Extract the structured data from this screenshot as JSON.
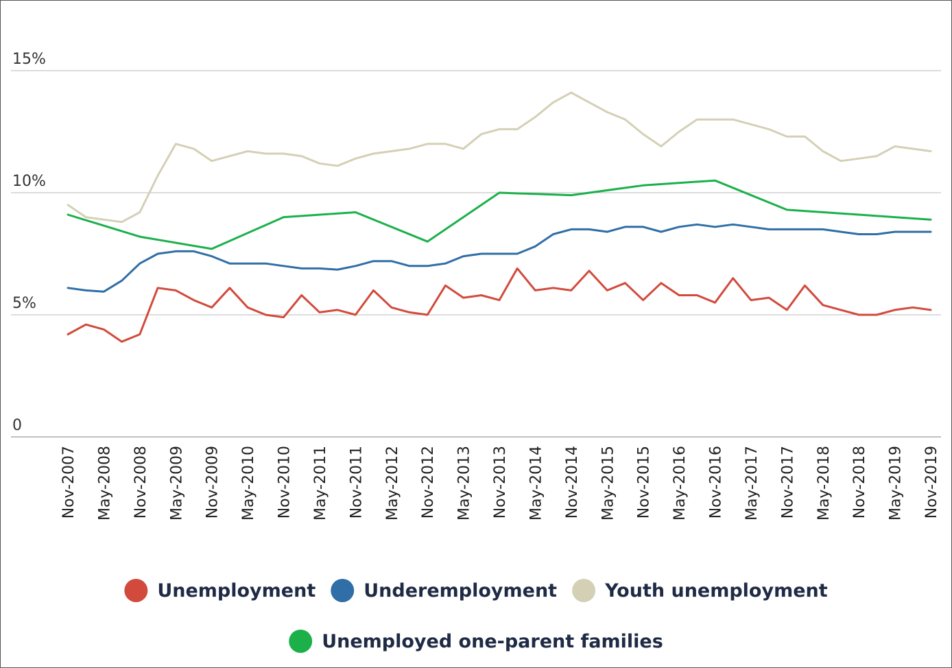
{
  "chart_data": {
    "type": "line",
    "categories": [
      "Nov-2007",
      "May-2008",
      "Nov-2008",
      "May-2009",
      "Nov-2009",
      "May-2010",
      "Nov-2010",
      "May-2011",
      "Nov-2011",
      "May-2012",
      "Nov-2012",
      "May-2013",
      "Nov-2013",
      "May-2014",
      "Nov-2014",
      "May-2015",
      "Nov-2015",
      "May-2016",
      "Nov-2016",
      "May-2017",
      "Nov-2017",
      "May-2018",
      "Nov-2018",
      "May-2019",
      "Nov-2019"
    ],
    "y_ticks": [
      {
        "value": 0,
        "label": "0"
      },
      {
        "value": 5,
        "label": "5%"
      },
      {
        "value": 10,
        "label": "10%"
      },
      {
        "value": 15,
        "label": "15%"
      }
    ],
    "ylim": [
      0,
      15
    ],
    "grid": true,
    "legend_position": "bottom",
    "series": [
      {
        "name": "Unemployment",
        "color": "#d24a3c",
        "points": [
          [
            0,
            4.2
          ],
          [
            0.5,
            4.6
          ],
          [
            1,
            4.4
          ],
          [
            1.5,
            3.9
          ],
          [
            2,
            4.2
          ],
          [
            2.5,
            6.1
          ],
          [
            3,
            6.0
          ],
          [
            3.5,
            5.6
          ],
          [
            4,
            5.3
          ],
          [
            4.5,
            6.1
          ],
          [
            5,
            5.3
          ],
          [
            5.5,
            5.0
          ],
          [
            6,
            4.9
          ],
          [
            6.5,
            5.8
          ],
          [
            7,
            5.1
          ],
          [
            7.5,
            5.2
          ],
          [
            8,
            5.0
          ],
          [
            8.5,
            6.0
          ],
          [
            9,
            5.3
          ],
          [
            9.5,
            5.1
          ],
          [
            10,
            5.0
          ],
          [
            10.5,
            6.2
          ],
          [
            11,
            5.7
          ],
          [
            11.5,
            5.8
          ],
          [
            12,
            5.6
          ],
          [
            12.5,
            6.9
          ],
          [
            13,
            6.0
          ],
          [
            13.5,
            6.1
          ],
          [
            14,
            6.0
          ],
          [
            14.5,
            6.8
          ],
          [
            15,
            6.0
          ],
          [
            15.5,
            6.3
          ],
          [
            16,
            5.6
          ],
          [
            16.5,
            6.3
          ],
          [
            17,
            5.8
          ],
          [
            17.5,
            5.8
          ],
          [
            18,
            5.5
          ],
          [
            18.5,
            6.5
          ],
          [
            19,
            5.6
          ],
          [
            19.5,
            5.7
          ],
          [
            20,
            5.2
          ],
          [
            20.5,
            6.2
          ],
          [
            21,
            5.4
          ],
          [
            21.5,
            5.2
          ],
          [
            22,
            5.0
          ],
          [
            22.5,
            5.0
          ],
          [
            23,
            5.2
          ],
          [
            23.5,
            5.3
          ],
          [
            24,
            5.2
          ]
        ]
      },
      {
        "name": "Underemployment",
        "color": "#2f6ea6",
        "points": [
          [
            0,
            6.1
          ],
          [
            0.5,
            6.0
          ],
          [
            1,
            5.95
          ],
          [
            1.5,
            6.4
          ],
          [
            2,
            7.1
          ],
          [
            2.5,
            7.5
          ],
          [
            3,
            7.6
          ],
          [
            3.5,
            7.6
          ],
          [
            4,
            7.4
          ],
          [
            4.5,
            7.1
          ],
          [
            5,
            7.1
          ],
          [
            5.5,
            7.1
          ],
          [
            6,
            7.0
          ],
          [
            6.5,
            6.9
          ],
          [
            7,
            6.9
          ],
          [
            7.5,
            6.85
          ],
          [
            8,
            7.0
          ],
          [
            8.5,
            7.2
          ],
          [
            9,
            7.2
          ],
          [
            9.5,
            7.0
          ],
          [
            10,
            7.0
          ],
          [
            10.5,
            7.1
          ],
          [
            11,
            7.4
          ],
          [
            11.5,
            7.5
          ],
          [
            12,
            7.5
          ],
          [
            12.5,
            7.5
          ],
          [
            13,
            7.8
          ],
          [
            13.5,
            8.3
          ],
          [
            14,
            8.5
          ],
          [
            14.5,
            8.5
          ],
          [
            15,
            8.4
          ],
          [
            15.5,
            8.6
          ],
          [
            16,
            8.6
          ],
          [
            16.5,
            8.4
          ],
          [
            17,
            8.6
          ],
          [
            17.5,
            8.7
          ],
          [
            18,
            8.6
          ],
          [
            18.5,
            8.7
          ],
          [
            19,
            8.6
          ],
          [
            19.5,
            8.5
          ],
          [
            20,
            8.5
          ],
          [
            20.5,
            8.5
          ],
          [
            21,
            8.5
          ],
          [
            21.5,
            8.4
          ],
          [
            22,
            8.3
          ],
          [
            22.5,
            8.3
          ],
          [
            23,
            8.4
          ],
          [
            23.5,
            8.4
          ],
          [
            24,
            8.4
          ]
        ]
      },
      {
        "name": "Youth unemployment",
        "color": "#d4d0b6",
        "points": [
          [
            0,
            9.5
          ],
          [
            0.5,
            9.0
          ],
          [
            1,
            8.9
          ],
          [
            1.5,
            8.8
          ],
          [
            2,
            9.2
          ],
          [
            2.5,
            10.7
          ],
          [
            3,
            12.0
          ],
          [
            3.5,
            11.8
          ],
          [
            4,
            11.3
          ],
          [
            4.5,
            11.5
          ],
          [
            5,
            11.7
          ],
          [
            5.5,
            11.6
          ],
          [
            6,
            11.6
          ],
          [
            6.5,
            11.5
          ],
          [
            7,
            11.2
          ],
          [
            7.5,
            11.1
          ],
          [
            8,
            11.4
          ],
          [
            8.5,
            11.6
          ],
          [
            9,
            11.7
          ],
          [
            9.5,
            11.8
          ],
          [
            10,
            12.0
          ],
          [
            10.5,
            12.0
          ],
          [
            11,
            11.8
          ],
          [
            11.5,
            12.4
          ],
          [
            12,
            12.6
          ],
          [
            12.5,
            12.6
          ],
          [
            13,
            13.1
          ],
          [
            13.5,
            13.7
          ],
          [
            14,
            14.1
          ],
          [
            14.5,
            13.7
          ],
          [
            15,
            13.3
          ],
          [
            15.5,
            13.0
          ],
          [
            16,
            12.4
          ],
          [
            16.5,
            11.9
          ],
          [
            17,
            12.5
          ],
          [
            17.5,
            13.0
          ],
          [
            18,
            13.0
          ],
          [
            18.5,
            13.0
          ],
          [
            19,
            12.8
          ],
          [
            19.5,
            12.6
          ],
          [
            20,
            12.3
          ],
          [
            20.5,
            12.3
          ],
          [
            21,
            11.7
          ],
          [
            21.5,
            11.3
          ],
          [
            22,
            11.4
          ],
          [
            22.5,
            11.5
          ],
          [
            23,
            11.9
          ],
          [
            23.5,
            11.8
          ],
          [
            24,
            11.7
          ]
        ]
      },
      {
        "name": "Unemployed one-parent families",
        "color": "#1bb04a",
        "points": [
          [
            0,
            9.1
          ],
          [
            2,
            8.2
          ],
          [
            4,
            7.7
          ],
          [
            6,
            9.0
          ],
          [
            8,
            9.2
          ],
          [
            10,
            8.0
          ],
          [
            12,
            10.0
          ],
          [
            14,
            9.9
          ],
          [
            16,
            10.3
          ],
          [
            18,
            10.5
          ],
          [
            20,
            9.3
          ],
          [
            22,
            9.1
          ],
          [
            24,
            8.9
          ]
        ]
      }
    ]
  }
}
